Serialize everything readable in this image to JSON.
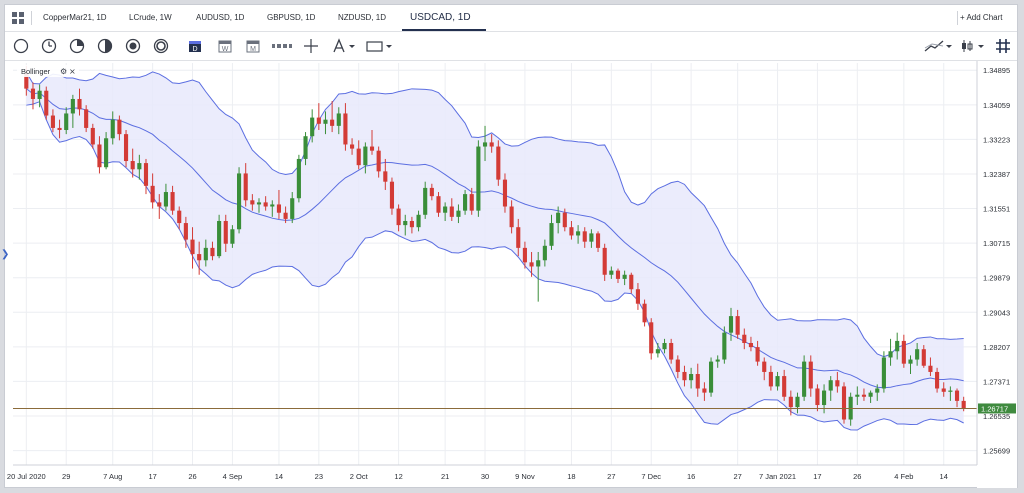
{
  "tabs": [
    {
      "label": "CopperMar21, 1D",
      "active": false
    },
    {
      "label": "LCrude, 1W",
      "active": false
    },
    {
      "label": "AUDUSD, 1D",
      "active": false
    },
    {
      "label": "GBPUSD, 1D",
      "active": false
    },
    {
      "label": "NZDUSD, 1D",
      "active": false
    },
    {
      "label": "USDCAD, 1D",
      "active": true
    }
  ],
  "add_chart_label": "+ Add Chart",
  "toolbar_icons": [
    "circle-chart-icon",
    "clock-icon",
    "pie-icon",
    "half-circle-icon",
    "target-icon",
    "ring-icon",
    "calendar-d-icon",
    "calendar-w-icon",
    "calendar-m-icon",
    "ruler-icon",
    "crosshair-icon",
    "text-tool-icon",
    "rectangle-tool-icon",
    "dropdown-icon",
    "line-tool-icon",
    "dropdown-icon",
    "candlestick-type-icon",
    "dropdown-icon",
    "hash-grid-icon"
  ],
  "indicator": {
    "label": "Bollinger",
    "settings_icon": "gear-icon",
    "close_icon": "close-icon"
  },
  "colors": {
    "up": "#3a8e39",
    "down": "#d33b36",
    "band_line": "#5b6ee1",
    "band_fill": "#e8e9fb",
    "price_line": "#8b6b3a",
    "price_label_bg": "#3f8a3f",
    "accent": "#23304f"
  },
  "chart_data": {
    "type": "candlestick",
    "symbol": "USDCAD",
    "timeframe": "1D",
    "price_ticks": [
      "1.34895",
      "1.34059",
      "1.33223",
      "1.32387",
      "1.31551",
      "1.30715",
      "1.29879",
      "1.29043",
      "1.28207",
      "1.27371",
      "1.26535",
      "1.25699"
    ],
    "ylim": [
      1.2535,
      1.3507
    ],
    "date_ticks": [
      "20 Jul 2020",
      "29",
      "7 Aug",
      "17",
      "26",
      "4 Sep",
      "14",
      "23",
      "2 Oct",
      "12",
      "21",
      "30",
      "9 Nov",
      "18",
      "27",
      "7 Dec",
      "16",
      "27",
      "7 Jan 2021",
      "17",
      "26",
      "4 Feb",
      "14"
    ],
    "current_price": "1.26717",
    "current_price_value": 1.26717,
    "grid": true,
    "candles": [
      {
        "o": 1.3481,
        "h": 1.35,
        "l": 1.3428,
        "c": 1.3445
      },
      {
        "o": 1.3445,
        "h": 1.346,
        "l": 1.3395,
        "c": 1.342
      },
      {
        "o": 1.342,
        "h": 1.3455,
        "l": 1.34,
        "c": 1.344
      },
      {
        "o": 1.344,
        "h": 1.345,
        "l": 1.337,
        "c": 1.338
      },
      {
        "o": 1.338,
        "h": 1.3395,
        "l": 1.334,
        "c": 1.335
      },
      {
        "o": 1.335,
        "h": 1.337,
        "l": 1.3325,
        "c": 1.3345
      },
      {
        "o": 1.3345,
        "h": 1.34,
        "l": 1.3335,
        "c": 1.3385
      },
      {
        "o": 1.3385,
        "h": 1.343,
        "l": 1.335,
        "c": 1.342
      },
      {
        "o": 1.342,
        "h": 1.3445,
        "l": 1.338,
        "c": 1.3395
      },
      {
        "o": 1.3395,
        "h": 1.3405,
        "l": 1.334,
        "c": 1.335
      },
      {
        "o": 1.335,
        "h": 1.336,
        "l": 1.33,
        "c": 1.331
      },
      {
        "o": 1.331,
        "h": 1.333,
        "l": 1.324,
        "c": 1.3255
      },
      {
        "o": 1.3255,
        "h": 1.334,
        "l": 1.325,
        "c": 1.3325
      },
      {
        "o": 1.3325,
        "h": 1.339,
        "l": 1.331,
        "c": 1.337
      },
      {
        "o": 1.337,
        "h": 1.338,
        "l": 1.332,
        "c": 1.3335
      },
      {
        "o": 1.3335,
        "h": 1.3345,
        "l": 1.3255,
        "c": 1.327
      },
      {
        "o": 1.327,
        "h": 1.33,
        "l": 1.323,
        "c": 1.325
      },
      {
        "o": 1.325,
        "h": 1.3285,
        "l": 1.3225,
        "c": 1.3265
      },
      {
        "o": 1.3265,
        "h": 1.3275,
        "l": 1.319,
        "c": 1.321
      },
      {
        "o": 1.321,
        "h": 1.324,
        "l": 1.3155,
        "c": 1.317
      },
      {
        "o": 1.317,
        "h": 1.319,
        "l": 1.313,
        "c": 1.316
      },
      {
        "o": 1.316,
        "h": 1.3215,
        "l": 1.315,
        "c": 1.3195
      },
      {
        "o": 1.3195,
        "h": 1.321,
        "l": 1.314,
        "c": 1.315
      },
      {
        "o": 1.315,
        "h": 1.316,
        "l": 1.3105,
        "c": 1.312
      },
      {
        "o": 1.312,
        "h": 1.3135,
        "l": 1.306,
        "c": 1.308
      },
      {
        "o": 1.308,
        "h": 1.311,
        "l": 1.301,
        "c": 1.3045
      },
      {
        "o": 1.3045,
        "h": 1.3075,
        "l": 1.2995,
        "c": 1.303
      },
      {
        "o": 1.303,
        "h": 1.308,
        "l": 1.3015,
        "c": 1.306
      },
      {
        "o": 1.306,
        "h": 1.3075,
        "l": 1.303,
        "c": 1.304
      },
      {
        "o": 1.304,
        "h": 1.314,
        "l": 1.3035,
        "c": 1.3125
      },
      {
        "o": 1.3125,
        "h": 1.314,
        "l": 1.305,
        "c": 1.307
      },
      {
        "o": 1.307,
        "h": 1.3115,
        "l": 1.306,
        "c": 1.3105
      },
      {
        "o": 1.3105,
        "h": 1.3255,
        "l": 1.3095,
        "c": 1.324
      },
      {
        "o": 1.324,
        "h": 1.3265,
        "l": 1.316,
        "c": 1.3175
      },
      {
        "o": 1.3175,
        "h": 1.319,
        "l": 1.315,
        "c": 1.3165
      },
      {
        "o": 1.3165,
        "h": 1.318,
        "l": 1.3145,
        "c": 1.317
      },
      {
        "o": 1.317,
        "h": 1.3185,
        "l": 1.315,
        "c": 1.316
      },
      {
        "o": 1.316,
        "h": 1.3175,
        "l": 1.3135,
        "c": 1.3165
      },
      {
        "o": 1.3165,
        "h": 1.32,
        "l": 1.313,
        "c": 1.3145
      },
      {
        "o": 1.3145,
        "h": 1.316,
        "l": 1.312,
        "c": 1.313
      },
      {
        "o": 1.313,
        "h": 1.3195,
        "l": 1.312,
        "c": 1.318
      },
      {
        "o": 1.318,
        "h": 1.3285,
        "l": 1.317,
        "c": 1.3275
      },
      {
        "o": 1.3275,
        "h": 1.334,
        "l": 1.326,
        "c": 1.333
      },
      {
        "o": 1.333,
        "h": 1.3395,
        "l": 1.3315,
        "c": 1.3375
      },
      {
        "o": 1.3375,
        "h": 1.341,
        "l": 1.3345,
        "c": 1.336
      },
      {
        "o": 1.336,
        "h": 1.339,
        "l": 1.3335,
        "c": 1.337
      },
      {
        "o": 1.337,
        "h": 1.3415,
        "l": 1.334,
        "c": 1.3355
      },
      {
        "o": 1.3355,
        "h": 1.34,
        "l": 1.3335,
        "c": 1.3385
      },
      {
        "o": 1.3385,
        "h": 1.341,
        "l": 1.3295,
        "c": 1.331
      },
      {
        "o": 1.331,
        "h": 1.3325,
        "l": 1.3285,
        "c": 1.33
      },
      {
        "o": 1.33,
        "h": 1.332,
        "l": 1.325,
        "c": 1.326
      },
      {
        "o": 1.326,
        "h": 1.3315,
        "l": 1.324,
        "c": 1.3305
      },
      {
        "o": 1.3305,
        "h": 1.3345,
        "l": 1.3285,
        "c": 1.3295
      },
      {
        "o": 1.3295,
        "h": 1.3305,
        "l": 1.323,
        "c": 1.3245
      },
      {
        "o": 1.3245,
        "h": 1.3275,
        "l": 1.32,
        "c": 1.322
      },
      {
        "o": 1.322,
        "h": 1.323,
        "l": 1.314,
        "c": 1.3155
      },
      {
        "o": 1.3155,
        "h": 1.3165,
        "l": 1.31,
        "c": 1.3115
      },
      {
        "o": 1.3115,
        "h": 1.314,
        "l": 1.309,
        "c": 1.3125
      },
      {
        "o": 1.3125,
        "h": 1.3135,
        "l": 1.3095,
        "c": 1.311
      },
      {
        "o": 1.311,
        "h": 1.315,
        "l": 1.31,
        "c": 1.314
      },
      {
        "o": 1.314,
        "h": 1.322,
        "l": 1.313,
        "c": 1.3205
      },
      {
        "o": 1.3205,
        "h": 1.3215,
        "l": 1.3175,
        "c": 1.3185
      },
      {
        "o": 1.3185,
        "h": 1.3195,
        "l": 1.3135,
        "c": 1.3145
      },
      {
        "o": 1.3145,
        "h": 1.317,
        "l": 1.3125,
        "c": 1.316
      },
      {
        "o": 1.316,
        "h": 1.318,
        "l": 1.3125,
        "c": 1.3135
      },
      {
        "o": 1.3135,
        "h": 1.3165,
        "l": 1.312,
        "c": 1.315
      },
      {
        "o": 1.315,
        "h": 1.32,
        "l": 1.314,
        "c": 1.319
      },
      {
        "o": 1.319,
        "h": 1.3205,
        "l": 1.314,
        "c": 1.315
      },
      {
        "o": 1.315,
        "h": 1.332,
        "l": 1.3135,
        "c": 1.3305
      },
      {
        "o": 1.3305,
        "h": 1.3355,
        "l": 1.327,
        "c": 1.3315
      },
      {
        "o": 1.3315,
        "h": 1.3335,
        "l": 1.329,
        "c": 1.3305
      },
      {
        "o": 1.3305,
        "h": 1.332,
        "l": 1.321,
        "c": 1.3225
      },
      {
        "o": 1.3225,
        "h": 1.324,
        "l": 1.3145,
        "c": 1.316
      },
      {
        "o": 1.316,
        "h": 1.3175,
        "l": 1.3095,
        "c": 1.311
      },
      {
        "o": 1.311,
        "h": 1.313,
        "l": 1.304,
        "c": 1.306
      },
      {
        "o": 1.306,
        "h": 1.3075,
        "l": 1.301,
        "c": 1.3025
      },
      {
        "o": 1.3025,
        "h": 1.305,
        "l": 1.299,
        "c": 1.3015
      },
      {
        "o": 1.3015,
        "h": 1.305,
        "l": 1.293,
        "c": 1.303
      },
      {
        "o": 1.303,
        "h": 1.308,
        "l": 1.3015,
        "c": 1.3065
      },
      {
        "o": 1.3065,
        "h": 1.314,
        "l": 1.3055,
        "c": 1.312
      },
      {
        "o": 1.312,
        "h": 1.316,
        "l": 1.3095,
        "c": 1.3145
      },
      {
        "o": 1.3145,
        "h": 1.3155,
        "l": 1.31,
        "c": 1.311
      },
      {
        "o": 1.311,
        "h": 1.3125,
        "l": 1.308,
        "c": 1.309
      },
      {
        "o": 1.309,
        "h": 1.3115,
        "l": 1.307,
        "c": 1.31
      },
      {
        "o": 1.31,
        "h": 1.311,
        "l": 1.306,
        "c": 1.3075
      },
      {
        "o": 1.3075,
        "h": 1.3105,
        "l": 1.306,
        "c": 1.3095
      },
      {
        "o": 1.3095,
        "h": 1.31,
        "l": 1.305,
        "c": 1.306
      },
      {
        "o": 1.306,
        "h": 1.307,
        "l": 1.298,
        "c": 1.2995
      },
      {
        "o": 1.2995,
        "h": 1.3015,
        "l": 1.2985,
        "c": 1.3005
      },
      {
        "o": 1.3005,
        "h": 1.301,
        "l": 1.2975,
        "c": 1.2985
      },
      {
        "o": 1.2985,
        "h": 1.3005,
        "l": 1.297,
        "c": 1.2995
      },
      {
        "o": 1.2995,
        "h": 1.3,
        "l": 1.295,
        "c": 1.296
      },
      {
        "o": 1.296,
        "h": 1.2975,
        "l": 1.291,
        "c": 1.2925
      },
      {
        "o": 1.2925,
        "h": 1.2935,
        "l": 1.287,
        "c": 1.288
      },
      {
        "o": 1.288,
        "h": 1.289,
        "l": 1.279,
        "c": 1.2805
      },
      {
        "o": 1.2805,
        "h": 1.283,
        "l": 1.2795,
        "c": 1.2815
      },
      {
        "o": 1.2815,
        "h": 1.284,
        "l": 1.2805,
        "c": 1.283
      },
      {
        "o": 1.283,
        "h": 1.284,
        "l": 1.278,
        "c": 1.279
      },
      {
        "o": 1.279,
        "h": 1.28,
        "l": 1.2745,
        "c": 1.276
      },
      {
        "o": 1.276,
        "h": 1.2775,
        "l": 1.2725,
        "c": 1.274
      },
      {
        "o": 1.274,
        "h": 1.277,
        "l": 1.272,
        "c": 1.2755
      },
      {
        "o": 1.2755,
        "h": 1.278,
        "l": 1.27,
        "c": 1.272
      },
      {
        "o": 1.272,
        "h": 1.2735,
        "l": 1.269,
        "c": 1.271
      },
      {
        "o": 1.271,
        "h": 1.2795,
        "l": 1.27,
        "c": 1.2785
      },
      {
        "o": 1.2785,
        "h": 1.28,
        "l": 1.277,
        "c": 1.279
      },
      {
        "o": 1.279,
        "h": 1.287,
        "l": 1.278,
        "c": 1.2855
      },
      {
        "o": 1.2855,
        "h": 1.2915,
        "l": 1.2835,
        "c": 1.2895
      },
      {
        "o": 1.2895,
        "h": 1.291,
        "l": 1.284,
        "c": 1.285
      },
      {
        "o": 1.285,
        "h": 1.2865,
        "l": 1.2815,
        "c": 1.283
      },
      {
        "o": 1.283,
        "h": 1.2845,
        "l": 1.281,
        "c": 1.282
      },
      {
        "o": 1.282,
        "h": 1.2835,
        "l": 1.2775,
        "c": 1.2785
      },
      {
        "o": 1.2785,
        "h": 1.2795,
        "l": 1.274,
        "c": 1.276
      },
      {
        "o": 1.276,
        "h": 1.2775,
        "l": 1.2715,
        "c": 1.2725
      },
      {
        "o": 1.2725,
        "h": 1.276,
        "l": 1.2715,
        "c": 1.275
      },
      {
        "o": 1.275,
        "h": 1.2765,
        "l": 1.269,
        "c": 1.27
      },
      {
        "o": 1.27,
        "h": 1.2715,
        "l": 1.2655,
        "c": 1.2675
      },
      {
        "o": 1.2675,
        "h": 1.271,
        "l": 1.266,
        "c": 1.27
      },
      {
        "o": 1.27,
        "h": 1.28,
        "l": 1.269,
        "c": 1.2785
      },
      {
        "o": 1.2785,
        "h": 1.28,
        "l": 1.27,
        "c": 1.272
      },
      {
        "o": 1.272,
        "h": 1.273,
        "l": 1.2665,
        "c": 1.268
      },
      {
        "o": 1.268,
        "h": 1.273,
        "l": 1.266,
        "c": 1.2715
      },
      {
        "o": 1.2715,
        "h": 1.275,
        "l": 1.269,
        "c": 1.274
      },
      {
        "o": 1.274,
        "h": 1.276,
        "l": 1.271,
        "c": 1.2725
      },
      {
        "o": 1.2725,
        "h": 1.2735,
        "l": 1.2635,
        "c": 1.2645
      },
      {
        "o": 1.2645,
        "h": 1.271,
        "l": 1.263,
        "c": 1.27
      },
      {
        "o": 1.27,
        "h": 1.2725,
        "l": 1.268,
        "c": 1.2705
      },
      {
        "o": 1.2705,
        "h": 1.272,
        "l": 1.269,
        "c": 1.27
      },
      {
        "o": 1.27,
        "h": 1.2715,
        "l": 1.2685,
        "c": 1.271
      },
      {
        "o": 1.271,
        "h": 1.273,
        "l": 1.269,
        "c": 1.272
      },
      {
        "o": 1.272,
        "h": 1.281,
        "l": 1.271,
        "c": 1.2795
      },
      {
        "o": 1.2795,
        "h": 1.284,
        "l": 1.2775,
        "c": 1.281
      },
      {
        "o": 1.281,
        "h": 1.2855,
        "l": 1.279,
        "c": 1.2835
      },
      {
        "o": 1.2835,
        "h": 1.285,
        "l": 1.277,
        "c": 1.278
      },
      {
        "o": 1.278,
        "h": 1.28,
        "l": 1.2755,
        "c": 1.279
      },
      {
        "o": 1.279,
        "h": 1.283,
        "l": 1.2775,
        "c": 1.2815
      },
      {
        "o": 1.2815,
        "h": 1.2825,
        "l": 1.277,
        "c": 1.2775
      },
      {
        "o": 1.2775,
        "h": 1.2795,
        "l": 1.275,
        "c": 1.276
      },
      {
        "o": 1.276,
        "h": 1.277,
        "l": 1.271,
        "c": 1.272
      },
      {
        "o": 1.272,
        "h": 1.2735,
        "l": 1.27,
        "c": 1.2712
      },
      {
        "o": 1.2712,
        "h": 1.2725,
        "l": 1.269,
        "c": 1.2715
      },
      {
        "o": 1.2715,
        "h": 1.272,
        "l": 1.2675,
        "c": 1.269
      },
      {
        "o": 1.269,
        "h": 1.27,
        "l": 1.2665,
        "c": 1.2672
      }
    ]
  }
}
